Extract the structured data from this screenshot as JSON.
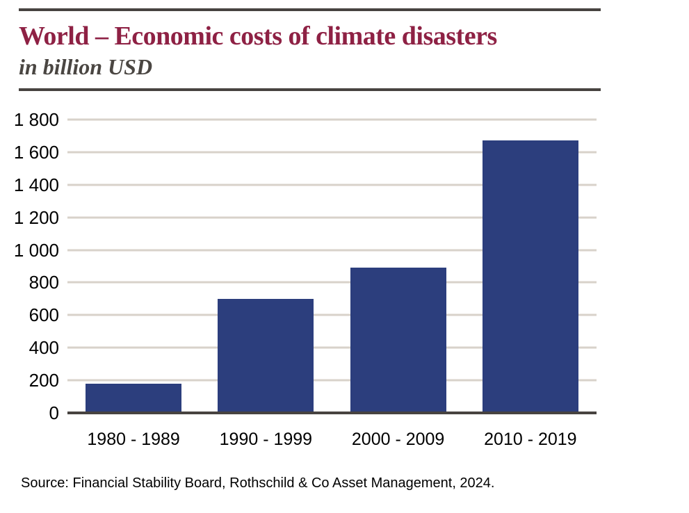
{
  "header": {
    "title": "World – Economic costs of climate disasters",
    "subtitle": "in billion USD"
  },
  "source_note": "Source: Financial Stability Board, Rothschild & Co Asset Management, 2024.",
  "chart_data": {
    "type": "bar",
    "title": "World – Economic costs of climate disasters",
    "subtitle": "in billion USD",
    "xlabel": "",
    "ylabel": "billion USD",
    "categories": [
      "1980 - 1989",
      "1990 - 1999",
      "2000 - 2009",
      "2010 - 2019"
    ],
    "values": [
      180,
      700,
      890,
      1670
    ],
    "ylim": [
      0,
      1800
    ],
    "ytick_step": 200,
    "ytick_labels": [
      "0",
      "200",
      "400",
      "600",
      "800",
      "1 000",
      "1 200",
      "1 400",
      "1 600",
      "1 800"
    ],
    "grid": true,
    "legend": false,
    "colors": {
      "bar": "#2c3e7d",
      "grid": "#d8d2ca",
      "axis": "#474340",
      "title": "#8e2144",
      "subtitle": "#4a4642"
    }
  }
}
